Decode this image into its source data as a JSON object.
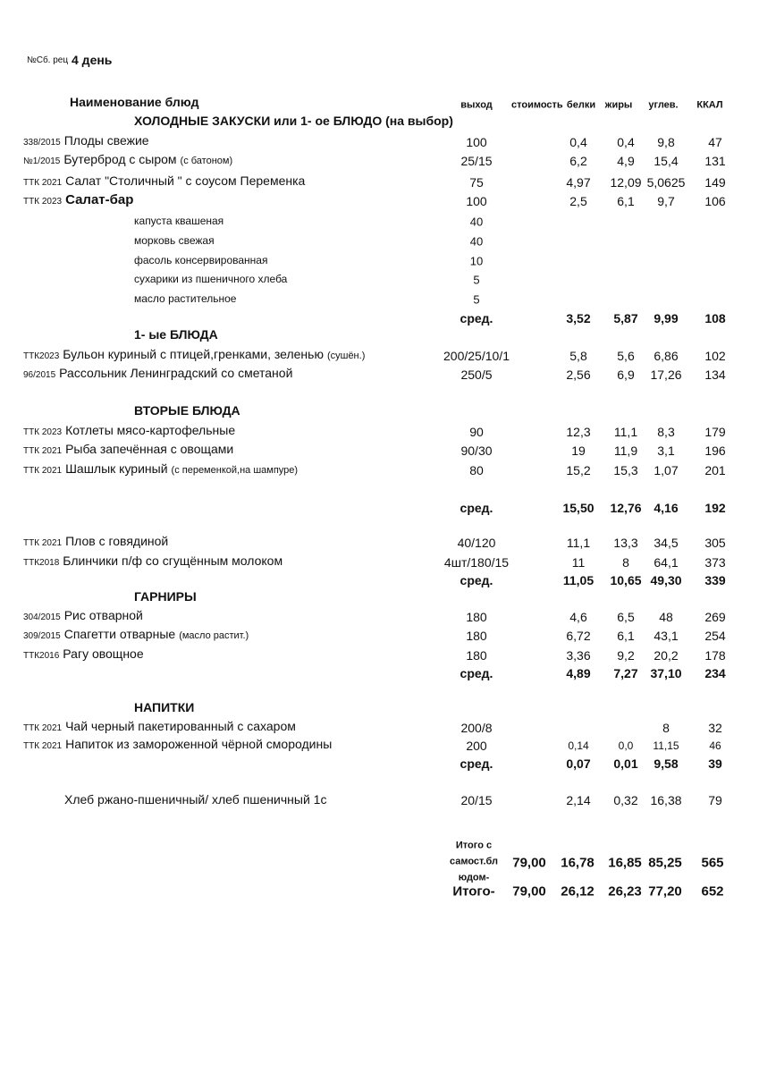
{
  "doc": {
    "ref_label": "№Сб. рец",
    "day": "4 день"
  },
  "header": {
    "name": "Наименование  блюд",
    "yield": "выход",
    "cost": "стоимость",
    "protein": "белки",
    "fat": "жиры",
    "carbs": "углев.",
    "kcal": "ККАЛ"
  },
  "rows": [
    {
      "type": "section",
      "name": "ХОЛОДНЫЕ  ЗАКУСКИ  или 1- ое БЛЮДО (на выбор)"
    },
    {
      "type": "dish",
      "code": "338/2015",
      "name": "Плоды свежие",
      "yield": "100",
      "protein": "0,4",
      "fat": "0,4",
      "carbs": "9,8",
      "kcal": "47"
    },
    {
      "type": "dish",
      "code": "№1/2015",
      "name": "Бутерброд с сыром",
      "note": "(с батоном)",
      "yield": "25/15",
      "protein": "6,2",
      "fat": "4,9",
      "carbs": "15,4",
      "kcal": "131"
    },
    {
      "type": "dish",
      "code": "ТТК 2021",
      "name": "Салат  \"Столичный \" с соусом Переменка",
      "yield": "75",
      "protein": "4,97",
      "fat": "12,09",
      "carbs": "5,0625",
      "kcal": "149"
    },
    {
      "type": "dish",
      "code": "ТТК 2023",
      "name": "Салат-бар",
      "bold": true,
      "yield": "100",
      "protein": "2,5",
      "fat": "6,1",
      "carbs": "9,7",
      "kcal": "106"
    },
    {
      "type": "sub",
      "name": "капуста квашеная",
      "yield": "40"
    },
    {
      "type": "sub",
      "name": "морковь свежая",
      "yield": "40"
    },
    {
      "type": "sub",
      "name": "фасоль консервированная",
      "yield": "10"
    },
    {
      "type": "sub",
      "name": "сухарики из пшеничного хлеба",
      "yield": "5"
    },
    {
      "type": "sub",
      "name": "масло растительное",
      "yield": "5"
    },
    {
      "type": "avg",
      "yield": "сред.",
      "protein": "3,52",
      "fat": "5,87",
      "carbs": "9,99",
      "kcal": "108"
    },
    {
      "type": "section",
      "name": "1- ые БЛЮДА"
    },
    {
      "type": "dish",
      "code": "ТТК2023",
      "name": "Бульон куриный с птицей,гренками, зеленью",
      "note": "(сушён.)",
      "yield": "200/25/10/1",
      "protein": "5,8",
      "fat": "5,6",
      "carbs": "6,86",
      "kcal": "102"
    },
    {
      "type": "dish",
      "code": "96/2015",
      "name": "Рассольник Ленинградский со сметаной",
      "yield": "250/5",
      "protein": "2,56",
      "fat": "6,9",
      "carbs": "17,26",
      "kcal": "134"
    },
    {
      "type": "section",
      "name": "ВТОРЫЕ  БЛЮДА"
    },
    {
      "type": "dish",
      "code": "ТТК 2023",
      "name": "Котлеты мясо-картофельные",
      "yield": "90",
      "protein": "12,3",
      "fat": "11,1",
      "carbs": "8,3",
      "kcal": "179"
    },
    {
      "type": "dish",
      "code": "ТТК 2021",
      "name": "Рыба запечённая с овощами",
      "yield": "90/30",
      "protein": "19",
      "fat": "11,9",
      "carbs": "3,1",
      "kcal": "196"
    },
    {
      "type": "dish",
      "code": "ТТК 2021",
      "name": "Шашлык  куриный",
      "note": "(с переменкой,на шампуре)",
      "yield": "80",
      "protein": "15,2",
      "fat": "15,3",
      "carbs": "1,07",
      "kcal": "201"
    },
    {
      "type": "avg",
      "yield": "сред.",
      "protein": "15,50",
      "fat": "12,76",
      "carbs": "4,16",
      "kcal": "192"
    },
    {
      "type": "dish",
      "code": "ТТК 2021",
      "name": "Плов с говядиной",
      "yield": "40/120",
      "protein": "11,1",
      "fat": "13,3",
      "carbs": "34,5",
      "kcal": "305"
    },
    {
      "type": "dish",
      "code": "ТТК2018",
      "name": "Блинчики п/ф со сгущённым молоком",
      "yield": "4шт/180/15",
      "protein": "11",
      "fat": "8",
      "carbs": "64,1",
      "kcal": "373"
    },
    {
      "type": "avg",
      "yield": "сред.",
      "protein": "11,05",
      "fat": "10,65",
      "carbs": "49,30",
      "kcal": "339"
    },
    {
      "type": "section",
      "name": "ГАРНИРЫ"
    },
    {
      "type": "dish",
      "code": "304/2015",
      "name": "Рис отварной",
      "yield": "180",
      "protein": "4,6",
      "fat": "6,5",
      "carbs": "48",
      "kcal": "269"
    },
    {
      "type": "dish",
      "code": "309/2015",
      "name": "Спагетти отварные",
      "note": "(масло растит.)",
      "yield": "180",
      "protein": "6,72",
      "fat": "6,1",
      "carbs": "43,1",
      "kcal": "254"
    },
    {
      "type": "dish",
      "code": "ТТК2016",
      "name": "Рагу овощное",
      "yield": "180",
      "protein": "3,36",
      "fat": "9,2",
      "carbs": "20,2",
      "kcal": "178"
    },
    {
      "type": "avg",
      "yield": "сред.",
      "protein": "4,89",
      "fat": "7,27",
      "carbs": "37,10",
      "kcal": "234"
    },
    {
      "type": "section",
      "name": "НАПИТКИ"
    },
    {
      "type": "dish",
      "code": "ТТК 2021",
      "name": "Чай черный пакетированный с сахаром",
      "yield": "200/8",
      "carbs": "8",
      "kcal": "32"
    },
    {
      "type": "dish",
      "code": "ТТК 2021",
      "name": "Напиток  из замороженной чёрной смородины",
      "yield": "200",
      "protein": "0,14",
      "fat": "0,0",
      "carbs": "11,15",
      "kcal": "46",
      "small": true
    },
    {
      "type": "avg",
      "yield": "сред.",
      "protein": "0,07",
      "fat": "0,01",
      "carbs": "9,58",
      "kcal": "39"
    },
    {
      "type": "bread",
      "name": "Хлеб ржано-пшеничный/ хлеб пшеничный 1с",
      "yield": "20/15",
      "protein": "2,14",
      "fat": "0,32",
      "carbs": "16,38",
      "kcal": "79"
    }
  ],
  "totals": [
    {
      "label": [
        "Итого с",
        "самост.бл",
        "юдом-"
      ],
      "cost": "79,00",
      "protein": "16,78",
      "fat": "16,85",
      "carbs": "85,25",
      "kcal": "565"
    },
    {
      "label": [
        "Итого-"
      ],
      "cost": "79,00",
      "protein": "26,12",
      "fat": "26,23",
      "carbs": "77,20",
      "kcal": "652"
    }
  ]
}
